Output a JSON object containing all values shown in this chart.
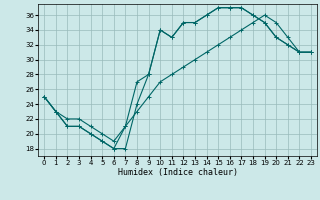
{
  "xlabel": "Humidex (Indice chaleur)",
  "bg_color": "#cce8e8",
  "grid_color": "#99bbbb",
  "line_color": "#006666",
  "xlim": [
    -0.5,
    23.5
  ],
  "ylim": [
    17,
    37.5
  ],
  "xticks": [
    0,
    1,
    2,
    3,
    4,
    5,
    6,
    7,
    8,
    9,
    10,
    11,
    12,
    13,
    14,
    15,
    16,
    17,
    18,
    19,
    20,
    21,
    22,
    23
  ],
  "yticks": [
    18,
    20,
    22,
    24,
    26,
    28,
    30,
    32,
    34,
    36
  ],
  "line1_x": [
    0,
    1,
    2,
    3,
    4,
    5,
    6,
    7,
    8,
    9,
    10,
    11,
    12,
    13,
    14,
    15,
    16,
    17,
    18,
    19,
    20,
    21,
    22,
    23
  ],
  "line1_y": [
    25,
    23,
    21,
    21,
    20,
    19,
    18,
    18,
    24,
    28,
    34,
    33,
    35,
    35,
    36,
    37,
    37,
    37,
    36,
    35,
    33,
    32,
    31,
    31
  ],
  "line2_x": [
    0,
    1,
    2,
    3,
    4,
    5,
    6,
    7,
    8,
    9,
    10,
    11,
    12,
    13,
    14,
    15,
    16,
    17,
    18,
    19,
    20,
    21,
    22,
    23
  ],
  "line2_y": [
    25,
    23,
    21,
    21,
    20,
    19,
    18,
    21,
    27,
    28,
    34,
    33,
    35,
    35,
    36,
    37,
    37,
    37,
    36,
    35,
    33,
    32,
    31,
    31
  ],
  "line3_x": [
    0,
    1,
    2,
    3,
    4,
    5,
    6,
    7,
    8,
    9,
    10,
    11,
    12,
    13,
    14,
    15,
    16,
    17,
    18,
    19,
    20,
    21,
    22,
    23
  ],
  "line3_y": [
    25,
    23,
    22,
    22,
    21,
    20,
    19,
    21,
    23,
    25,
    27,
    28,
    29,
    30,
    31,
    32,
    33,
    34,
    35,
    36,
    35,
    33,
    31,
    31
  ],
  "xlabel_fontsize": 6,
  "tick_fontsize": 5,
  "lw": 0.8,
  "ms": 2.5
}
